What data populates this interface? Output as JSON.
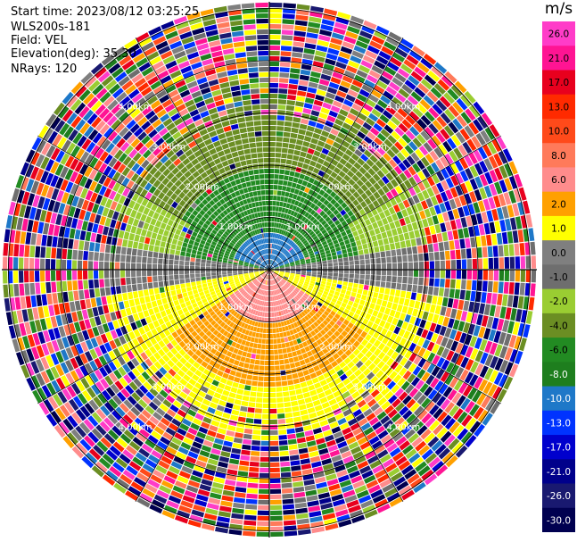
{
  "header": {
    "start_time": "Start time: 2023/08/12 03:25:25",
    "instrument": "WLS200s-181",
    "field": "Field: VEL",
    "elevation": "Elevation(deg): 35.30",
    "nrays": "NRays: 120"
  },
  "colorbar": {
    "units": "m/s",
    "ticks": [
      "26.0",
      "21.0",
      "17.0",
      "13.0",
      "10.0",
      "8.0",
      "6.0",
      "2.0",
      "1.0",
      "0.0",
      "-1.0",
      "-2.0",
      "-4.0",
      "-6.0",
      "-8.0",
      "-10.0",
      "-13.0",
      "-17.0",
      "-21.0",
      "-26.0",
      "-30.0"
    ],
    "colors": [
      "#ff3cc8",
      "#ff1493",
      "#e8001e",
      "#ff2a00",
      "#ff4a1a",
      "#ff7a5a",
      "#ff8c8c",
      "#ffa000",
      "#ffff00",
      "#7f7f7f",
      "#6e6e6e",
      "#9acd32",
      "#6b8e23",
      "#228b22",
      "#1e7e1e",
      "#1e78c8",
      "#0033ff",
      "#0000cd",
      "#00008b",
      "#191970",
      "#000050"
    ]
  },
  "range_labels": [
    "1.00km",
    "2.00km",
    "3.00km",
    "4.00km"
  ],
  "colors": {
    "grid": "#000000",
    "range_ring_text": "#ffffff"
  }
}
